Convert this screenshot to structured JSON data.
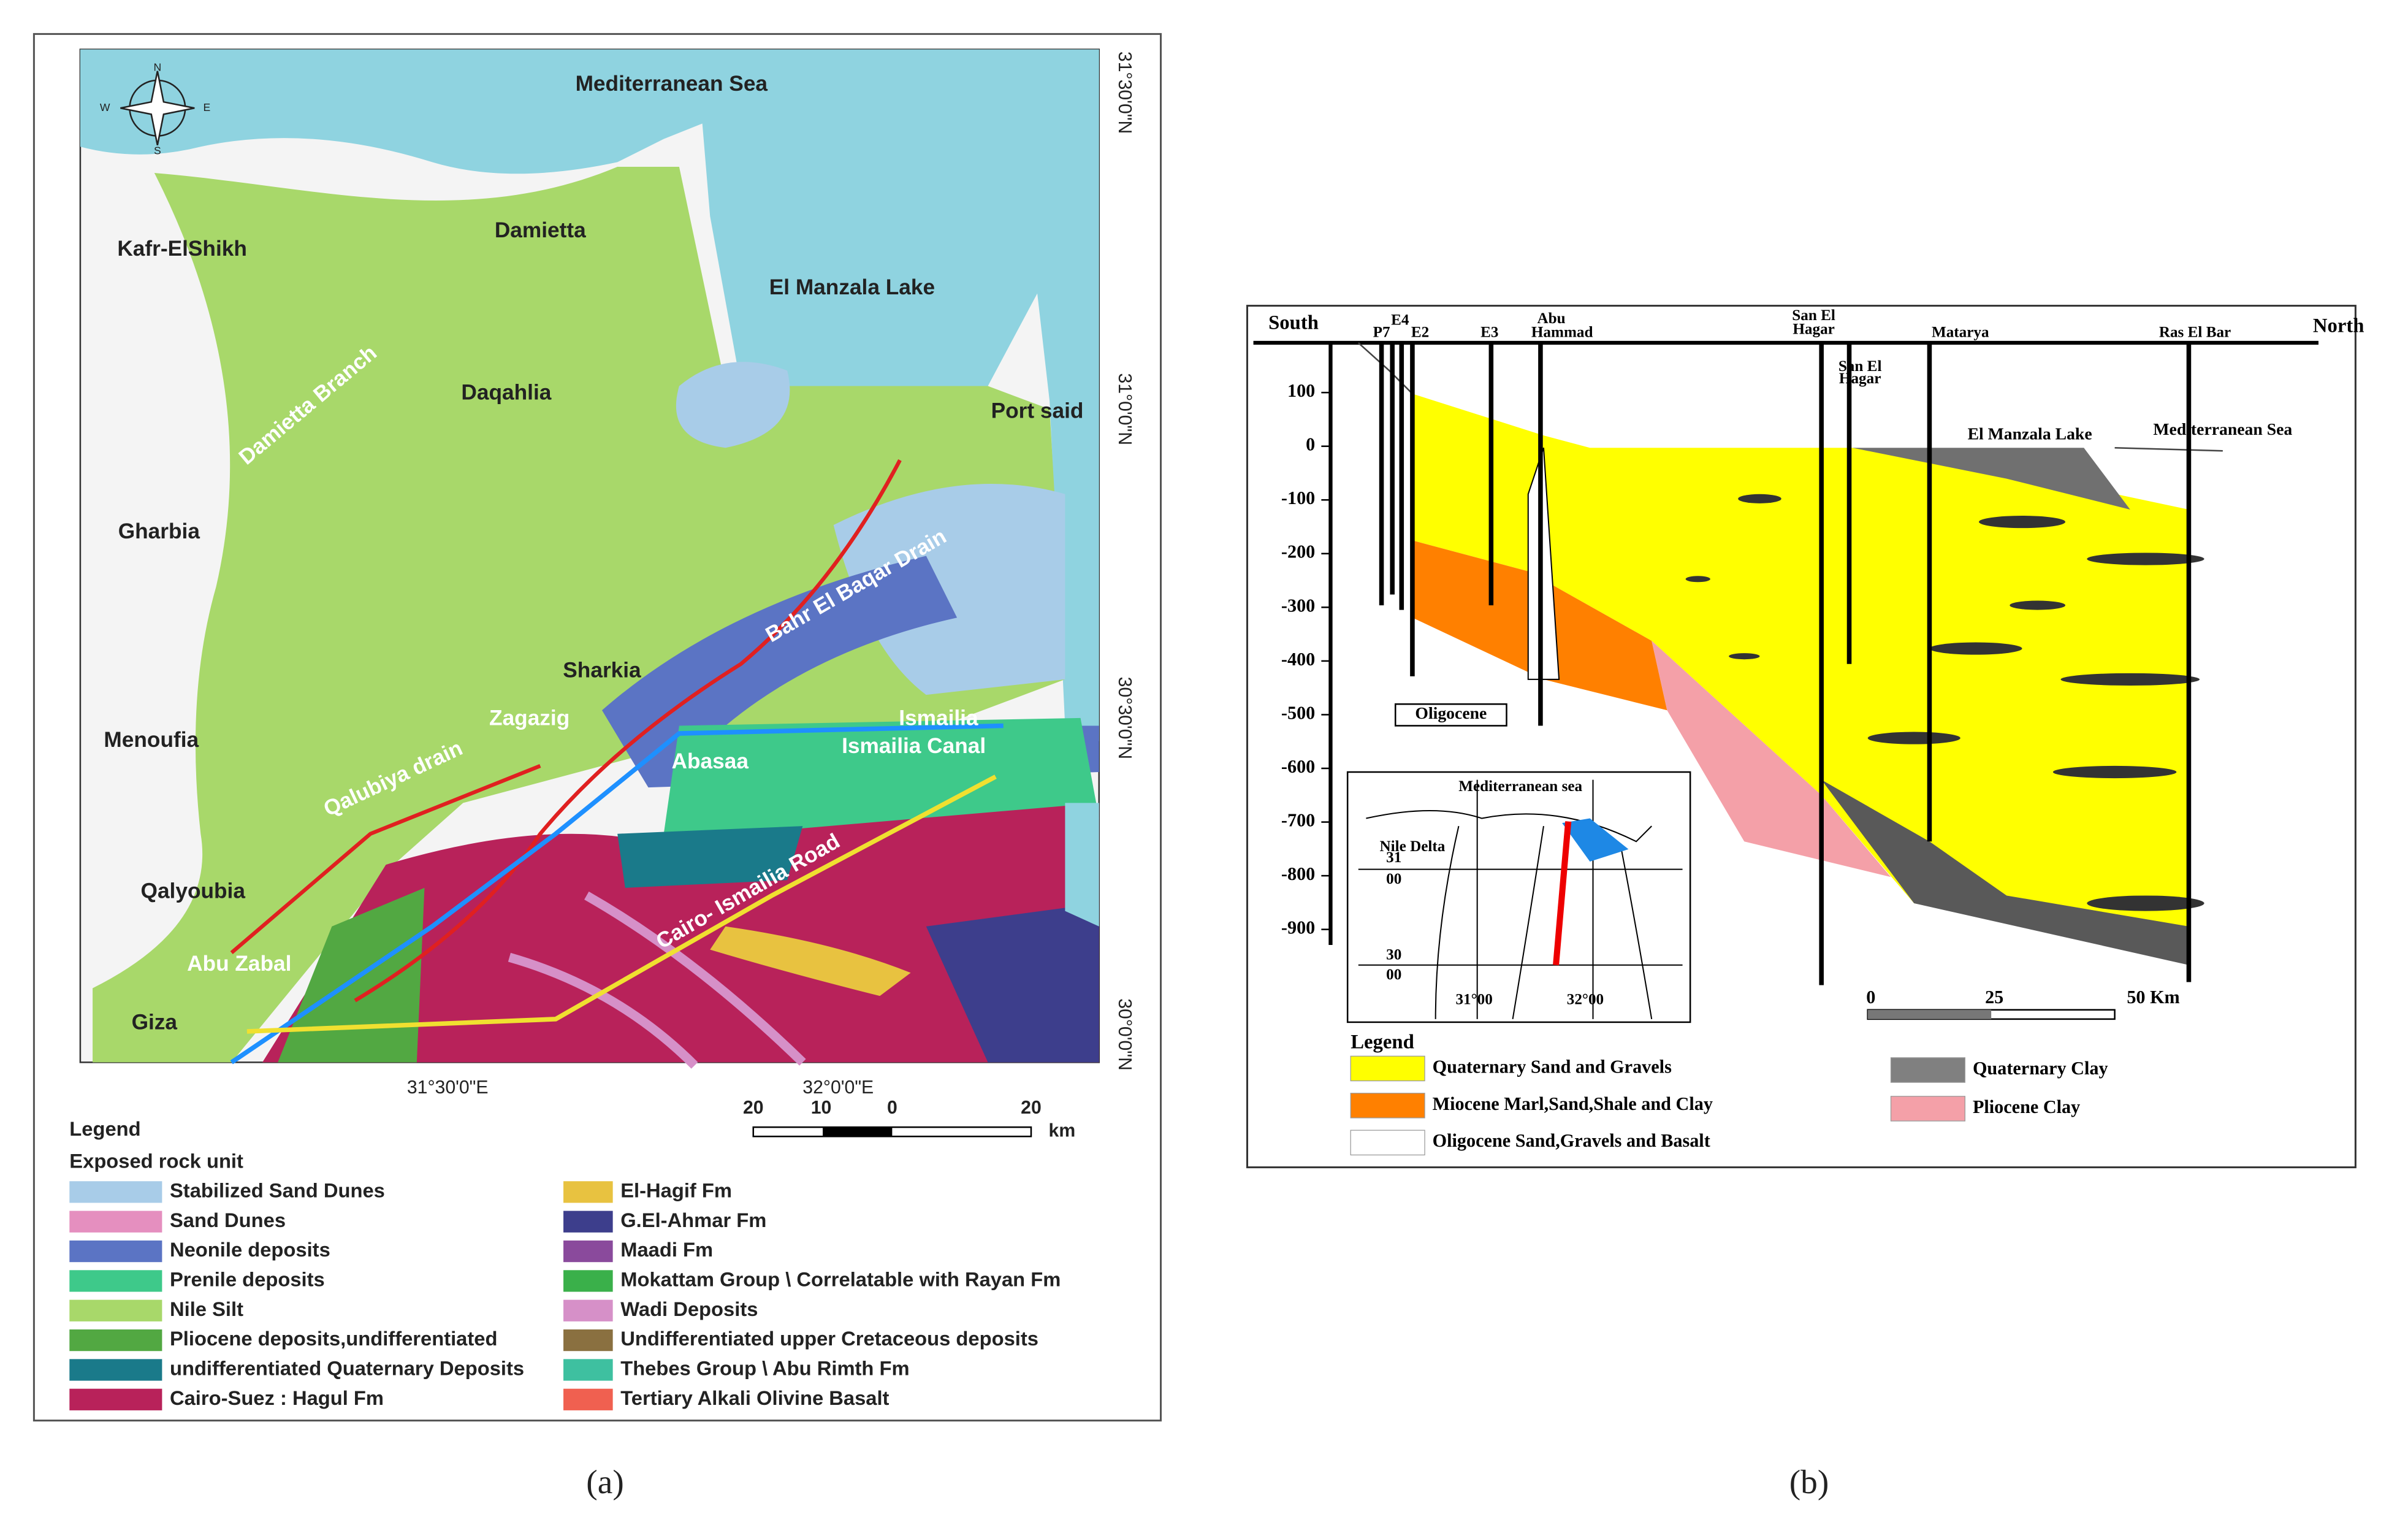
{
  "figure_a": {
    "caption": "(a)",
    "places": [
      "Mediterranean Sea",
      "Damietta",
      "Kafr-ElShikh",
      "El Manzala Lake",
      "Damietta Branch",
      "Daqahlia",
      "Port said",
      "Gharbia",
      "Bahr El Baqar Drain",
      "Sharkia",
      "Zagazig",
      "Ismailia",
      "Menoufia",
      "Ismailia Canal",
      "Abasaa",
      "Qalubiya drain",
      "Qalyoubia",
      "Cairo- Ismailia Road",
      "Abu Zabal",
      "Giza"
    ],
    "coordinates": [
      "31°30'0\"N",
      "31°0'0\"N",
      "30°30'0\"N",
      "30°0'0\"N",
      "31°30'0\"E",
      "32°0'0\"E"
    ],
    "compass": [
      "N",
      "S",
      "W",
      "E"
    ],
    "scale": [
      "20",
      "10",
      "0",
      "20",
      "km"
    ],
    "legend_title": "Legend",
    "legend_subtitle": "Exposed rock unit",
    "legend": [
      {
        "label": "Stabilized Sand Dunes",
        "color": "#a8cce8"
      },
      {
        "label": "Sand Dunes",
        "color": "#e58fbf"
      },
      {
        "label": "Neonile deposits",
        "color": "#5b74c4"
      },
      {
        "label": "Prenile deposits",
        "color": "#3ec98a"
      },
      {
        "label": "Nile Silt",
        "color": "#a8d86a"
      },
      {
        "label": "Pliocene deposits,undifferentiated",
        "color": "#52a842"
      },
      {
        "label": "undifferentiated Quaternary Deposits",
        "color": "#1a7a8a"
      },
      {
        "label": "Cairo-Suez : Hagul Fm",
        "color": "#b8225a"
      },
      {
        "label": "El-Hagif Fm",
        "color": "#e8c240"
      },
      {
        "label": "G.El-Ahmar Fm",
        "color": "#3d3e8c"
      },
      {
        "label": "Maadi Fm",
        "color": "#8a4a9c"
      },
      {
        "label": "Mokattam Group \\ Correlatable with Rayan Fm",
        "color": "#3ab04a"
      },
      {
        "label": "Wadi Deposits",
        "color": "#d690c8"
      },
      {
        "label": "Undifferentiated upper Cretaceous deposits",
        "color": "#8a7040"
      },
      {
        "label": "Thebes Group \\ Abu Rimth Fm",
        "color": "#3ec0a0"
      },
      {
        "label": "Tertiary Alkali Olivine Basalt",
        "color": "#f06050"
      }
    ]
  },
  "figure_b": {
    "caption": "(b)",
    "ends": [
      "South",
      "North"
    ],
    "wells": [
      "P7",
      "E4",
      "E2",
      "E3",
      "Abu",
      "Hammad",
      "San El",
      "Hagar",
      "Matarya",
      "Ras El Bar",
      "San El",
      "Hagar"
    ],
    "depth_ticks": [
      100,
      0,
      -100,
      -200,
      -300,
      -400,
      -500,
      -600,
      -700,
      -800,
      -900
    ],
    "features": [
      "El Manzala Lake",
      "Mediterranean Sea",
      "Oligocene"
    ],
    "inset": [
      "Mediterranean sea",
      "Nile Delta",
      "31",
      "00",
      "30",
      "00",
      "31°00",
      "32°00"
    ],
    "scale": [
      "0",
      "25",
      "50 Km"
    ],
    "legend_title": "Legend",
    "legend": [
      {
        "label": "Quaternary Sand and Gravels",
        "color": "#ffff00"
      },
      {
        "label": "Miocene Marl,Sand,Shale and Clay",
        "color": "#ff8000"
      },
      {
        "label": "Oligocene Sand,Gravels and Basalt",
        "color": "#ffffff"
      },
      {
        "label": "Quaternary Clay",
        "color": "#808080"
      },
      {
        "label": "Pliocene Clay",
        "color": "#f4a0a8"
      }
    ]
  }
}
